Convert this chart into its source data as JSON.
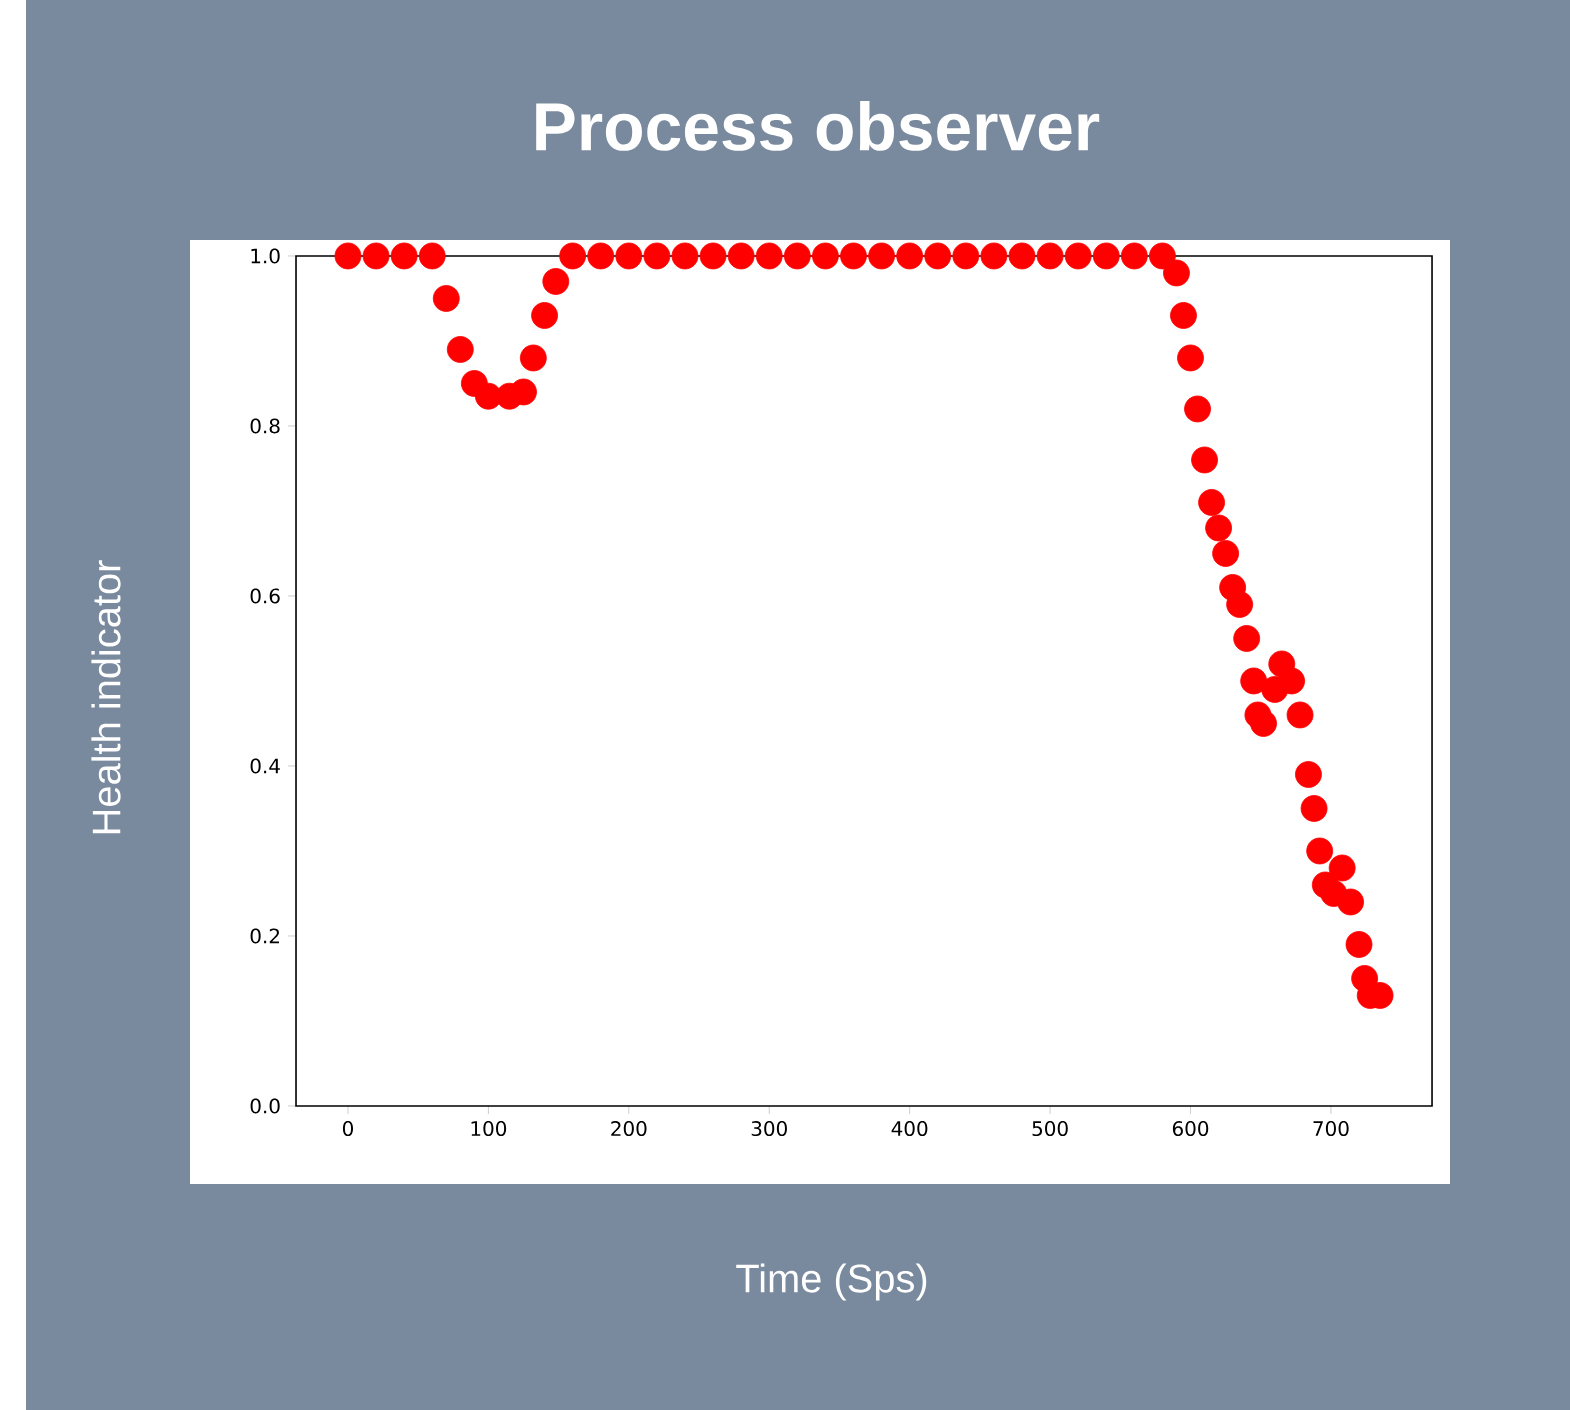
{
  "chart_data": {
    "type": "scatter",
    "title": "Process observer",
    "xlabel": "Time (Sps)",
    "ylabel": "Health indicator",
    "xlim": [
      -37,
      772
    ],
    "ylim": [
      0,
      1
    ],
    "xticks": [
      0,
      100,
      200,
      300,
      400,
      500,
      600,
      700
    ],
    "yticks": [
      {
        "value": 0,
        "label": "0.0"
      },
      {
        "value": 0.2,
        "label": "0.2"
      },
      {
        "value": 0.4,
        "label": "0.4"
      },
      {
        "value": 0.6,
        "label": "0.6"
      },
      {
        "value": 0.8,
        "label": "0.8"
      },
      {
        "value": 1,
        "label": "1.0"
      }
    ],
    "x": [
      0,
      20,
      40,
      60,
      70,
      80,
      90,
      100,
      115,
      125,
      132,
      140,
      148,
      160,
      180,
      200,
      220,
      240,
      260,
      280,
      300,
      320,
      340,
      360,
      380,
      400,
      420,
      440,
      460,
      480,
      500,
      520,
      540,
      560,
      580,
      590,
      595,
      600,
      605,
      610,
      615,
      620,
      625,
      630,
      635,
      640,
      645,
      648,
      652,
      660,
      665,
      672,
      678,
      684,
      688,
      692,
      696,
      702,
      708,
      714,
      720,
      724,
      728,
      735
    ],
    "series": [
      {
        "color": "#ff0000",
        "values": [
          1,
          1,
          1,
          1,
          0.95,
          0.89,
          0.85,
          0.835,
          0.835,
          0.84,
          0.88,
          0.93,
          0.97,
          1,
          1,
          1,
          1,
          1,
          1,
          1,
          1,
          1,
          1,
          1,
          1,
          1,
          1,
          1,
          1,
          1,
          1,
          1,
          1,
          1,
          1,
          0.98,
          0.93,
          0.88,
          0.82,
          0.76,
          0.71,
          0.68,
          0.65,
          0.61,
          0.59,
          0.55,
          0.5,
          0.46,
          0.45,
          0.49,
          0.52,
          0.5,
          0.46,
          0.39,
          0.35,
          0.3,
          0.26,
          0.25,
          0.28,
          0.24,
          0.19,
          0.15,
          0.13,
          0.13
        ]
      }
    ]
  }
}
